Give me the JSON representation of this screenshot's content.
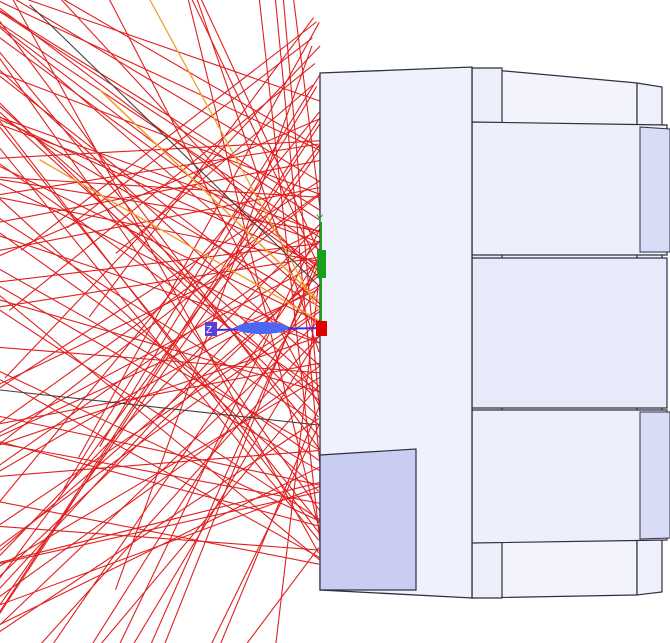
{
  "scene": {
    "background": "#ffffff",
    "colors": {
      "ray_red": "#e02020",
      "ray_orange": "#f0a030",
      "ray_dark": "#404040",
      "housing_face": "#eef0fb",
      "housing_side": "#f3f4fb",
      "housing_edge": "#303040",
      "housing_panel": "#c8cdf0",
      "housing_lens": "#d8dcf6",
      "axis_y": "#1aa01a",
      "axis_z": "#3030ff",
      "axis_x": "#e00000"
    },
    "axis_labels": {
      "y": "Y",
      "z": "Z"
    },
    "icons": [
      "ray-fan",
      "optical-housing",
      "coordinate-axes-triad"
    ]
  }
}
